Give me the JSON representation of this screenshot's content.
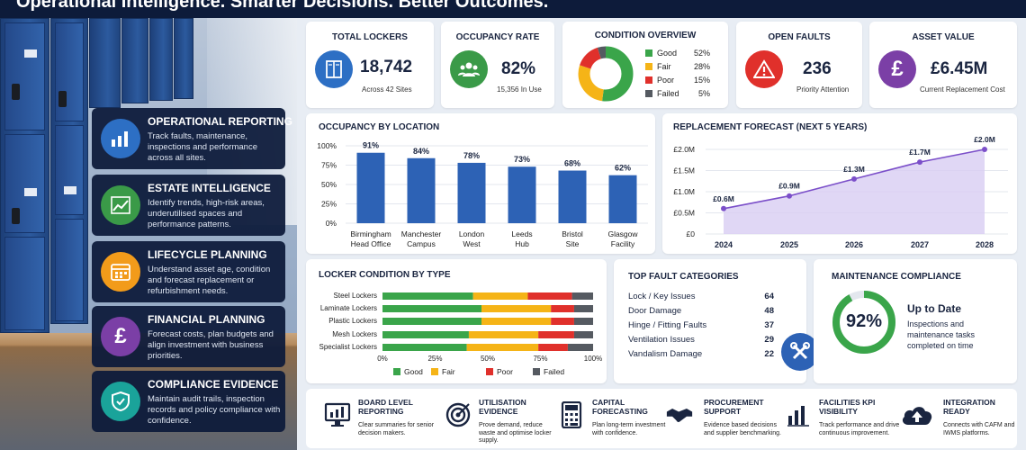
{
  "header": {
    "tagline": "Operational Intelligence. Smarter Decisions. Better Outcomes."
  },
  "features": [
    {
      "title": "OPERATIONAL REPORTING",
      "desc": "Track faults, maintenance, inspections and performance across all sites.",
      "icon": "bar-chart-icon",
      "color": "#2d6fc4"
    },
    {
      "title": "ESTATE INTELLIGENCE",
      "desc": "Identify trends, high-risk areas, underutilised spaces and performance patterns.",
      "icon": "trend-chart-icon",
      "color": "#3a9a48"
    },
    {
      "title": "LIFECYCLE PLANNING",
      "desc": "Understand asset age, condition and forecast replacement or refurbishment needs.",
      "icon": "calendar-icon",
      "color": "#f29b1a"
    },
    {
      "title": "FINANCIAL PLANNING",
      "desc": "Forecast costs, plan budgets and align investment with business priorities.",
      "icon": "pound-icon",
      "color": "#7b3fa6"
    },
    {
      "title": "COMPLIANCE EVIDENCE",
      "desc": "Maintain audit trails, inspection records and policy compliance with confidence.",
      "icon": "shield-check-icon",
      "color": "#1aa39a"
    }
  ],
  "kpis": {
    "lockers": {
      "title": "TOTAL LOCKERS",
      "value": "18,742",
      "sub": "Across 42 Sites",
      "color": "#2d6fc4"
    },
    "occupancy": {
      "title": "OCCUPANCY RATE",
      "value": "82%",
      "sub": "15,356 In Use",
      "color": "#3a9a48"
    },
    "condition": {
      "title": "CONDITION OVERVIEW",
      "items": [
        {
          "label": "Good",
          "value": "52%",
          "pct": 52,
          "color": "#3aa54a"
        },
        {
          "label": "Fair",
          "value": "28%",
          "pct": 28,
          "color": "#f5b417"
        },
        {
          "label": "Poor",
          "value": "15%",
          "pct": 15,
          "color": "#e0302b"
        },
        {
          "label": "Failed",
          "value": "5%",
          "pct": 5,
          "color": "#555a61"
        }
      ]
    },
    "faults": {
      "title": "OPEN FAULTS",
      "value": "236",
      "sub": "Priority Attention",
      "color": "#e0302b"
    },
    "asset": {
      "title": "ASSET VALUE",
      "value": "£6.45M",
      "sub": "Current Replacement Cost",
      "color": "#7b3fa6"
    }
  },
  "chart_data": [
    {
      "type": "bar",
      "title": "OCCUPANCY BY LOCATION",
      "categories": [
        "Birmingham Head Office",
        "Manchester Campus",
        "London West",
        "Leeds Hub",
        "Bristol Site",
        "Glasgow Facility"
      ],
      "category_lines": [
        [
          "Birmingham",
          "Head Office"
        ],
        [
          "Manchester",
          "Campus"
        ],
        [
          "London",
          "West"
        ],
        [
          "Leeds",
          "Hub"
        ],
        [
          "Bristol",
          "Site"
        ],
        [
          "Glasgow",
          "Facility"
        ]
      ],
      "values": [
        91,
        84,
        78,
        73,
        68,
        62
      ],
      "data_labels": [
        "91%",
        "84%",
        "78%",
        "73%",
        "68%",
        "62%"
      ],
      "yticks": [
        "0%",
        "25%",
        "50%",
        "75%",
        "100%"
      ],
      "ylim": [
        0,
        100
      ],
      "color": "#2d62b5"
    },
    {
      "type": "area",
      "title": "REPLACEMENT FORECAST (NEXT 5 YEARS)",
      "x": [
        "2024",
        "2025",
        "2026",
        "2027",
        "2028"
      ],
      "values": [
        0.6,
        0.9,
        1.3,
        1.7,
        2.0
      ],
      "data_labels": [
        "£0.6M",
        "£0.9M",
        "£1.3M",
        "£1.7M",
        "£2.0M"
      ],
      "yticks": [
        "£0",
        "£0.5M",
        "£1.0M",
        "£1.5M",
        "£2.0M"
      ],
      "ylim": [
        0,
        2.0
      ],
      "color": "#7b4fc9"
    },
    {
      "type": "bar",
      "orientation": "horizontal-stacked",
      "title": "LOCKER CONDITION BY TYPE",
      "categories": [
        "Steel Lockers",
        "Laminate Lockers",
        "Plastic Lockers",
        "Mesh Lockers",
        "Specialist Lockers"
      ],
      "series": [
        {
          "name": "Good",
          "color": "#3aa54a",
          "values": [
            43,
            47,
            47,
            41,
            40
          ]
        },
        {
          "name": "Fair",
          "color": "#f5b417",
          "values": [
            26,
            33,
            33,
            33,
            34
          ]
        },
        {
          "name": "Poor",
          "color": "#e0302b",
          "values": [
            21,
            11,
            11,
            17,
            14
          ]
        },
        {
          "name": "Failed",
          "color": "#555a61",
          "values": [
            10,
            9,
            9,
            9,
            12
          ]
        }
      ],
      "xticks": [
        "0%",
        "25%",
        "50%",
        "75%",
        "100%"
      ],
      "xlim": [
        0,
        100
      ],
      "legend": "bottom"
    }
  ],
  "faults_list": {
    "title": "TOP FAULT CATEGORIES",
    "items": [
      {
        "label": "Lock / Key Issues",
        "count": "64"
      },
      {
        "label": "Door Damage",
        "count": "48"
      },
      {
        "label": "Hinge / Fitting Faults",
        "count": "37"
      },
      {
        "label": "Ventilation Issues",
        "count": "29"
      },
      {
        "label": "Vandalism Damage",
        "count": "22"
      }
    ]
  },
  "compliance": {
    "title": "MAINTENANCE COMPLIANCE",
    "value": "92%",
    "pct": 92,
    "status": "Up to Date",
    "desc": "Inspections and maintenance tasks completed on time",
    "color": "#3aa54a"
  },
  "bottom": [
    {
      "title": "BOARD LEVEL REPORTING",
      "desc": "Clear summaries for senior decision makers.",
      "icon": "monitor-chart-icon"
    },
    {
      "title": "UTILISATION EVIDENCE",
      "desc": "Prove demand, reduce waste and optimise locker supply.",
      "icon": "target-icon"
    },
    {
      "title": "CAPITAL FORECASTING",
      "desc": "Plan long-term investment with confidence.",
      "icon": "calculator-icon"
    },
    {
      "title": "PROCUREMENT SUPPORT",
      "desc": "Evidence based decisions and supplier benchmarking.",
      "icon": "handshake-icon"
    },
    {
      "title": "FACILITIES KPI VISIBILITY",
      "desc": "Track performance and drive continuous improvement.",
      "icon": "kpi-bars-icon"
    },
    {
      "title": "INTEGRATION READY",
      "desc": "Connects with CAFM and IWMS platforms.",
      "icon": "cloud-upload-icon"
    }
  ]
}
